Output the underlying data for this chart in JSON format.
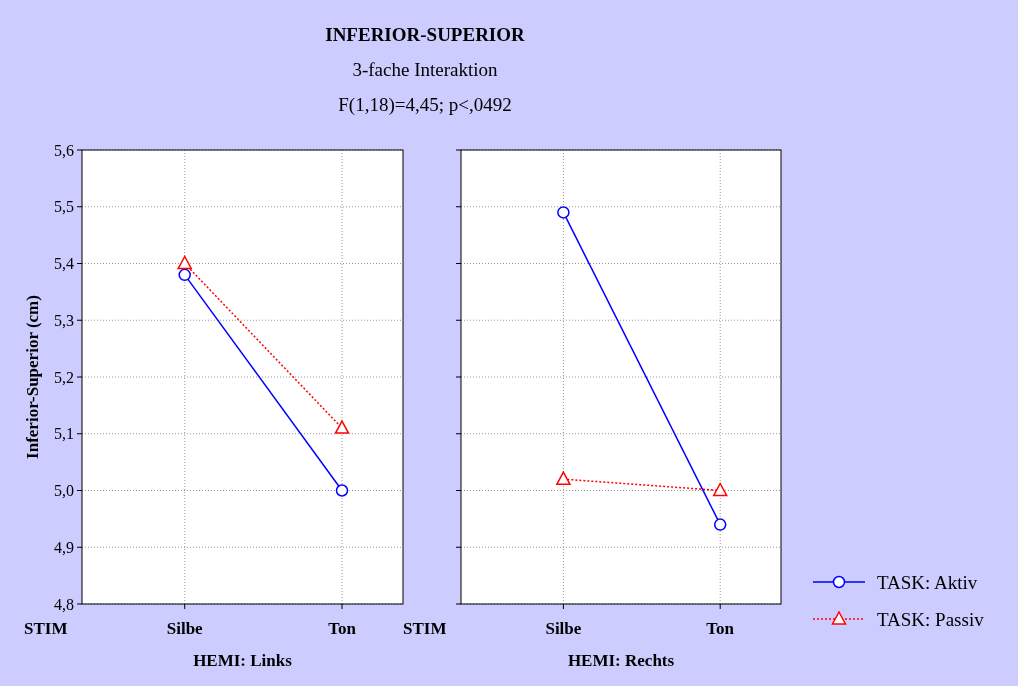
{
  "chart_data": [
    {
      "type": "line",
      "title": "INFERIOR-SUPERIOR",
      "subtitle": "3-fache Interaktion",
      "annotations": [
        "F(1,18)=4,45; p<,0492",
        "STIM"
      ],
      "ylabel": "Inferior-Superior (cm)",
      "xlabel": "HEMI: Links",
      "categories": [
        "Silbe",
        "Ton"
      ],
      "series": [
        {
          "color": "#0000ff",
          "values": [
            5.38,
            5.0
          ],
          "marker": "circle",
          "line_style": "solid"
        },
        {
          "color": "#ff0000",
          "values": [
            5.4,
            5.11
          ],
          "marker": "triangle",
          "line_style": "dotted"
        }
      ],
      "ylim": [
        4.8,
        5.6
      ],
      "yticks": [
        {
          "value": 4.8,
          "label": "4,8"
        },
        {
          "value": 4.9,
          "label": "4,9"
        },
        {
          "value": 5.0,
          "label": "5,0"
        },
        {
          "value": 5.1,
          "label": "5,1"
        },
        {
          "value": 5.2,
          "label": "5,2"
        },
        {
          "value": 5.3,
          "label": "5,3"
        },
        {
          "value": 5.4,
          "label": "5,4"
        },
        {
          "value": 5.5,
          "label": "5,5"
        },
        {
          "value": 5.6,
          "label": "5,6"
        }
      ],
      "grid": true
    },
    {
      "type": "line",
      "annotations": [
        "STIM"
      ],
      "xlabel": "HEMI: Rechts",
      "categories": [
        "Silbe",
        "Ton"
      ],
      "series": [
        {
          "name": "TASK: Aktiv",
          "color": "#0000ff",
          "values": [
            5.49,
            4.94
          ],
          "marker": "circle",
          "line_style": "solid"
        },
        {
          "name": "TASK: Passiv",
          "color": "#ff0000",
          "values": [
            5.02,
            5.0
          ],
          "marker": "triangle",
          "line_style": "dotted"
        }
      ],
      "ylim": [
        4.8,
        5.6
      ],
      "yticks": [
        {
          "value": 4.8,
          "label": null
        },
        {
          "value": 4.9,
          "label": null
        },
        {
          "value": 5.0,
          "label": null
        },
        {
          "value": 5.1,
          "label": null
        },
        {
          "value": 5.2,
          "label": null
        },
        {
          "value": 5.3,
          "label": null
        },
        {
          "value": 5.4,
          "label": null
        },
        {
          "value": 5.5,
          "label": null
        },
        {
          "value": 5.6,
          "label": null
        }
      ],
      "grid": true,
      "tick_labels": "x",
      "legend": "right"
    }
  ]
}
